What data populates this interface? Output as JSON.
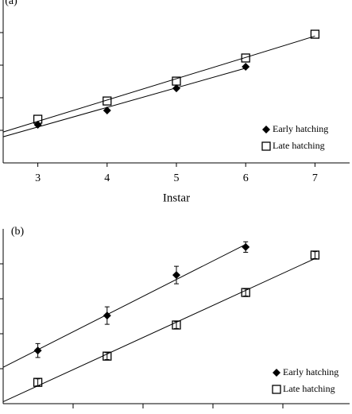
{
  "chart_data": [
    {
      "type": "scatter",
      "panel_label": "(a)",
      "x_label": "Instar",
      "x": [
        3,
        4,
        5,
        6,
        7
      ],
      "xlim": [
        2.5,
        7.5
      ],
      "xticks": [
        3,
        4,
        5,
        6,
        7
      ],
      "ylim": [
        0,
        5
      ],
      "trendline": true,
      "legend": "lower right",
      "series": [
        {
          "name": "Early hatching",
          "marker": "diamond",
          "color": "#000000",
          "values": [
            1.17,
            1.61,
            2.29,
            2.95,
            null
          ]
        },
        {
          "name": "Late hatching",
          "marker": "square",
          "color": "#000000",
          "values": [
            1.34,
            1.9,
            2.51,
            3.22,
            3.95
          ]
        }
      ]
    },
    {
      "type": "scatter",
      "panel_label": "(b)",
      "x": [
        3,
        4,
        5,
        6,
        7
      ],
      "xlim": [
        2.5,
        7.5
      ],
      "ylim": [
        0,
        5
      ],
      "trendline": true,
      "legend": "lower right",
      "series": [
        {
          "name": "Early hatching",
          "marker": "diamond",
          "color": "#000000",
          "values": [
            1.52,
            2.52,
            3.68,
            4.48,
            null
          ],
          "errors": [
            0.2,
            0.25,
            0.25,
            0.15,
            null
          ]
        },
        {
          "name": "Late hatching",
          "marker": "square",
          "color": "#000000",
          "values": [
            0.61,
            1.36,
            2.25,
            3.18,
            4.25
          ],
          "errors": [
            0.1,
            0.1,
            0.1,
            0.1,
            0.1
          ]
        }
      ]
    }
  ]
}
